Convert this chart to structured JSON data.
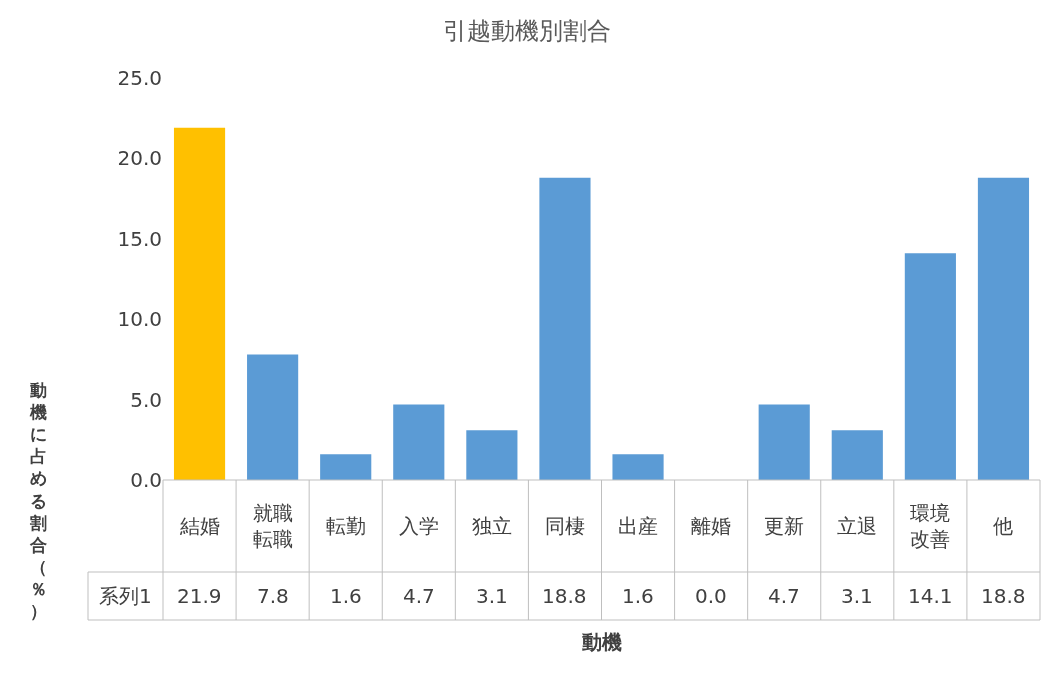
{
  "chart_data": {
    "type": "bar",
    "title": "引越動機別割合",
    "xlabel": "動機",
    "ylabel": "動機に占める割合（％）",
    "categories": [
      "結婚",
      "就職転職",
      "転勤",
      "入学",
      "独立",
      "同棲",
      "出産",
      "離婚",
      "更新",
      "立退",
      "環境改善",
      "他"
    ],
    "series": [
      {
        "name": "系列1",
        "values": [
          21.9,
          7.8,
          1.6,
          4.7,
          3.1,
          18.8,
          1.6,
          0.0,
          4.7,
          3.1,
          14.1,
          18.8
        ],
        "colors": [
          "#ffc000",
          "#5b9bd5",
          "#5b9bd5",
          "#5b9bd5",
          "#5b9bd5",
          "#5b9bd5",
          "#5b9bd5",
          "#5b9bd5",
          "#5b9bd5",
          "#5b9bd5",
          "#5b9bd5",
          "#5b9bd5"
        ],
        "value_labels": [
          "21.9",
          "7.8",
          "1.6",
          "4.7",
          "3.1",
          "18.8",
          "1.6",
          "0.0",
          "4.7",
          "3.1",
          "14.1",
          "18.8"
        ]
      }
    ],
    "ylim": [
      0,
      25
    ],
    "yticks": [
      {
        "value": 0,
        "label": "0.0"
      },
      {
        "value": 5,
        "label": "5.0"
      },
      {
        "value": 10,
        "label": "10.0"
      },
      {
        "value": 15,
        "label": "15.0"
      },
      {
        "value": 20,
        "label": "20.0"
      },
      {
        "value": 25,
        "label": "25.0"
      }
    ],
    "grid": false
  }
}
